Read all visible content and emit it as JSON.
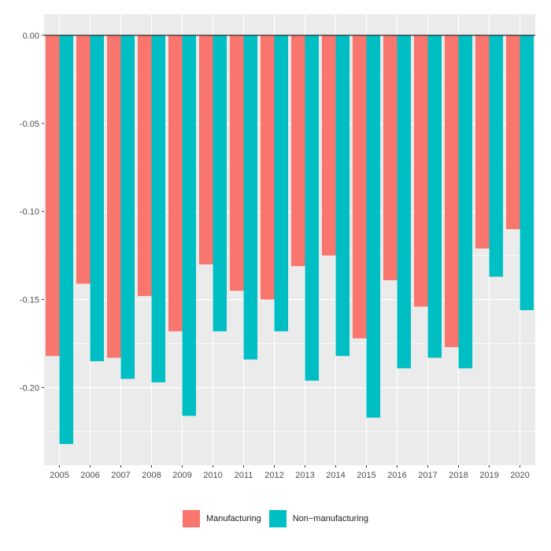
{
  "chart_data": {
    "type": "bar",
    "categories": [
      "2005",
      "2006",
      "2007",
      "2008",
      "2009",
      "2010",
      "2011",
      "2012",
      "2013",
      "2014",
      "2015",
      "2016",
      "2017",
      "2018",
      "2019",
      "2020"
    ],
    "series": [
      {
        "name": "Manufacturing",
        "color": "#F8766D",
        "values": [
          -0.182,
          -0.141,
          -0.183,
          -0.148,
          -0.168,
          -0.13,
          -0.145,
          -0.15,
          -0.131,
          -0.125,
          -0.172,
          -0.139,
          -0.154,
          -0.177,
          -0.121,
          -0.11
        ]
      },
      {
        "name": "Non−manufacturing",
        "color": "#00BFC4",
        "values": [
          -0.232,
          -0.185,
          -0.195,
          -0.197,
          -0.216,
          -0.168,
          -0.184,
          -0.168,
          -0.196,
          -0.182,
          -0.217,
          -0.189,
          -0.183,
          -0.189,
          -0.137,
          -0.156
        ]
      }
    ],
    "y_ticks": [
      "0.00",
      "-0.05",
      "-0.10",
      "-0.15",
      "-0.20"
    ],
    "y_tick_values": [
      0,
      -0.05,
      -0.1,
      -0.15,
      -0.2
    ],
    "ylim": [
      -0.244,
      0.012
    ],
    "grid": true,
    "legend_position": "bottom",
    "zero_line": true,
    "panel_color": "#EBEBEB",
    "title": "",
    "xlabel": "",
    "ylabel": ""
  }
}
